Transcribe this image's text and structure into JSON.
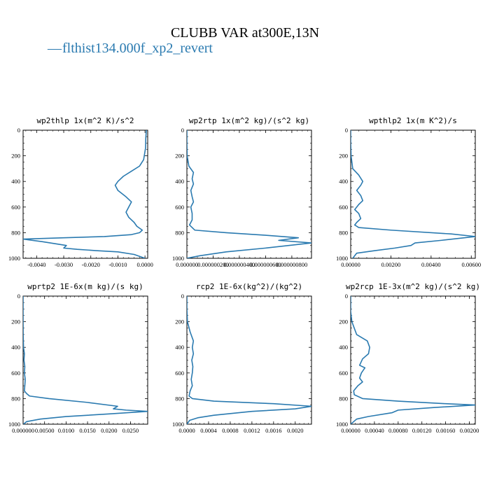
{
  "figure": {
    "title": "CLUBB VAR at300E,13N",
    "series_color": "#2a7ab0",
    "legend": {
      "marker": "—",
      "label": "flthist134.000f_xp2_revert"
    }
  },
  "chart_data": [
    {
      "type": "line",
      "title": "wp2thlp  1x(m^2 K)/s^2",
      "xlim": [
        -0.0045,
        0.0001
      ],
      "xticks": [
        -0.004,
        -0.003,
        -0.002,
        -0.001,
        0.0
      ],
      "xtick_labels": [
        "-0.0040",
        "-0.0030",
        "-0.0020",
        "-0.0010",
        "0.0000"
      ],
      "ylim": [
        1000,
        0
      ],
      "yticks": [
        0,
        200,
        400,
        600,
        800,
        1000
      ],
      "ytick_labels": [
        "0",
        "200",
        "400",
        "600",
        "800",
        "1000"
      ],
      "series": [
        {
          "x": [
            5e-05,
            3e-05,
            2e-05,
            -5e-05,
            -0.0002,
            -0.0005,
            -0.0008,
            -0.001,
            -0.0011,
            -0.001,
            -0.0007,
            -0.0005,
            -0.0006,
            -0.0007,
            -0.0006,
            -0.0004,
            -0.0003,
            -0.0001,
            -0.0002,
            -0.0005,
            -0.0015,
            -0.003,
            -0.0045,
            -0.0038,
            -0.0029,
            -0.003,
            -0.0025,
            -0.0018,
            -0.001,
            -0.0004,
            0.0
          ],
          "y": [
            0,
            60,
            140,
            230,
            280,
            320,
            360,
            400,
            430,
            470,
            520,
            560,
            600,
            640,
            680,
            720,
            750,
            780,
            800,
            815,
            830,
            840,
            850,
            870,
            900,
            920,
            930,
            940,
            950,
            970,
            1000
          ]
        }
      ]
    },
    {
      "type": "line",
      "title": "wp2rtp  1x(m^2 kg)/(s^2 kg)",
      "xlim": [
        0.0,
        9.5e-07
      ],
      "xticks": [
        0.0,
        2e-07,
        4e-07,
        6e-07,
        8e-07
      ],
      "xtick_labels": [
        "0.000000",
        "0.000000200",
        "0.000000400",
        "0.000000600",
        "0.000000800"
      ],
      "ylim": [
        1000,
        0
      ],
      "yticks": [
        0,
        200,
        400,
        600,
        800,
        1000
      ],
      "ytick_labels": [
        "0",
        "200",
        "400",
        "600",
        "800",
        "1000"
      ],
      "series": [
        {
          "x": [
            0.0,
            0.0,
            2e-09,
            1.5e-08,
            5e-08,
            4e-08,
            5e-08,
            3e-08,
            4e-08,
            5e-08,
            3e-08,
            4e-08,
            4e-08,
            2e-08,
            6e-08,
            3e-07,
            6e-07,
            8.5e-07,
            7e-07,
            9.5e-07,
            6e-07,
            3e-07,
            1e-07,
            0.0
          ],
          "y": [
            0,
            100,
            200,
            280,
            330,
            380,
            420,
            470,
            520,
            560,
            600,
            650,
            700,
            740,
            780,
            800,
            820,
            840,
            860,
            880,
            920,
            950,
            980,
            1000
          ]
        }
      ]
    },
    {
      "type": "line",
      "title": "wpthlp2  1x(m K^2)/s",
      "xlim": [
        0.0,
        0.0062
      ],
      "xticks": [
        0.0,
        0.002,
        0.004,
        0.006
      ],
      "xtick_labels": [
        "0.00000",
        "0.00200",
        "0.00400",
        "0.00600"
      ],
      "ylim": [
        1000,
        0
      ],
      "yticks": [
        0,
        200,
        400,
        600,
        800,
        1000
      ],
      "ytick_labels": [
        "0",
        "200",
        "400",
        "600",
        "800",
        "1000"
      ],
      "series": [
        {
          "x": [
            0.0,
            0.0,
            2e-05,
            0.0001,
            0.0004,
            0.0006,
            0.0005,
            0.0003,
            0.0005,
            0.0006,
            0.0004,
            0.0002,
            0.0004,
            0.0005,
            0.0003,
            0.0002,
            0.0004,
            0.002,
            0.005,
            0.0062,
            0.0045,
            0.0032,
            0.003,
            0.0022,
            0.0012,
            0.0003,
            0.0001
          ],
          "y": [
            0,
            100,
            200,
            300,
            350,
            400,
            430,
            470,
            510,
            550,
            580,
            620,
            650,
            690,
            720,
            740,
            760,
            780,
            810,
            830,
            860,
            880,
            900,
            920,
            940,
            960,
            1000
          ]
        }
      ]
    },
    {
      "type": "line",
      "title": "wprtp2  1E-6x(m kg)/(s kg)",
      "xlim": [
        0.0,
        0.029
      ],
      "xticks": [
        0.0,
        0.005,
        0.01,
        0.015,
        0.02,
        0.025
      ],
      "xtick_labels": [
        "0.000000",
        "0.00500",
        "0.0100",
        "0.0150",
        "0.0200",
        "0.0250"
      ],
      "ylim": [
        1000,
        0
      ],
      "yticks": [
        0,
        200,
        400,
        600,
        800,
        1000
      ],
      "ytick_labels": [
        "0",
        "200",
        "400",
        "600",
        "800",
        "1000"
      ],
      "series": [
        {
          "x": [
            0.0,
            0.0,
            2e-05,
            0.0001,
            0.0003,
            0.0002,
            0.0004,
            0.0003,
            0.0005,
            0.0004,
            0.0003,
            0.0008,
            0.0015,
            0.006,
            0.015,
            0.022,
            0.021,
            0.024,
            0.029,
            0.02,
            0.01,
            0.004,
            0.0008,
            0.0001
          ],
          "y": [
            0,
            150,
            300,
            400,
            450,
            500,
            550,
            600,
            650,
            700,
            740,
            760,
            780,
            800,
            830,
            860,
            880,
            890,
            900,
            920,
            940,
            960,
            980,
            1000
          ]
        }
      ]
    },
    {
      "type": "line",
      "title": "rcp2  1E-6x(kg^2)/(kg^2)",
      "xlim": [
        0.0,
        0.0023
      ],
      "xticks": [
        0.0,
        0.0004,
        0.0008,
        0.0012,
        0.0016,
        0.002
      ],
      "xtick_labels": [
        "0.0000",
        "0.0004",
        "0.0008",
        "0.0012",
        "0.0016",
        "0.0020"
      ],
      "ylim": [
        1000,
        0
      ],
      "yticks": [
        0,
        200,
        400,
        600,
        800,
        1000
      ],
      "ytick_labels": [
        "0",
        "200",
        "400",
        "600",
        "800",
        "1000"
      ],
      "series": [
        {
          "x": [
            0.0,
            0.0,
            1e-05,
            6e-05,
            0.00012,
            0.0001,
            0.00012,
            9e-05,
            0.00011,
            0.0001,
            8e-05,
            0.0001,
            6e-05,
            4e-05,
            0.0001,
            0.0005,
            0.0016,
            0.0023,
            0.002,
            0.0012,
            0.0005,
            0.0002,
            5e-05,
            0.0
          ],
          "y": [
            0,
            100,
            200,
            280,
            350,
            400,
            450,
            500,
            550,
            600,
            650,
            700,
            740,
            780,
            800,
            820,
            840,
            860,
            880,
            900,
            930,
            950,
            970,
            1000
          ]
        }
      ]
    },
    {
      "type": "line",
      "title": "wp2rcp  1E-3x(m^2 kg)/(s^2 kg)",
      "xlim": [
        0.0,
        0.0021
      ],
      "xticks": [
        0.0,
        0.0004,
        0.0008,
        0.0012,
        0.0016,
        0.002
      ],
      "xtick_labels": [
        "0.00000",
        "0.00040",
        "0.00080",
        "0.00120",
        "0.00160",
        "0.00200"
      ],
      "ylim": [
        1000,
        0
      ],
      "yticks": [
        0,
        200,
        400,
        600,
        800,
        1000
      ],
      "ytick_labels": [
        "0",
        "200",
        "400",
        "600",
        "800",
        "1000"
      ],
      "series": [
        {
          "x": [
            0.0,
            0.0,
            2e-05,
            0.0001,
            0.00028,
            0.00032,
            0.0003,
            0.0002,
            0.00015,
            0.00024,
            0.00018,
            0.00015,
            0.0002,
            0.00012,
            5e-05,
            6e-05,
            0.0002,
            0.0008,
            0.0016,
            0.0021,
            0.0014,
            0.0008,
            0.0007,
            0.0003,
            0.0001,
            0.0
          ],
          "y": [
            0,
            120,
            200,
            300,
            350,
            400,
            450,
            490,
            540,
            560,
            600,
            640,
            670,
            700,
            740,
            770,
            800,
            820,
            840,
            850,
            870,
            890,
            910,
            940,
            960,
            1000
          ]
        }
      ]
    }
  ]
}
